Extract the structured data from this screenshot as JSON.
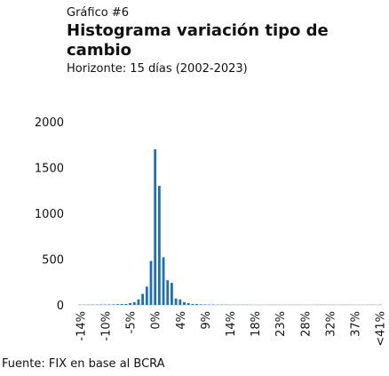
{
  "chart_data": {
    "type": "bar",
    "kicker": "Gráfico #6",
    "title": "Histograma variación tipo de cambio",
    "subtitle": "Horizonte: 15 días (2002-2023)",
    "source": "Fuente: FIX en base al BCRA",
    "color": "#1f6fb5",
    "categories": [
      "-14%",
      null,
      null,
      null,
      null,
      null,
      "-10%",
      null,
      null,
      null,
      null,
      null,
      "-5%",
      null,
      null,
      null,
      null,
      null,
      "0%",
      null,
      null,
      null,
      null,
      null,
      "4%",
      null,
      null,
      null,
      null,
      null,
      "9%",
      null,
      null,
      null,
      null,
      null,
      "14%",
      null,
      null,
      null,
      null,
      null,
      "18%",
      null,
      null,
      null,
      null,
      null,
      "23%",
      null,
      null,
      null,
      null,
      null,
      "28%",
      null,
      null,
      null,
      null,
      null,
      "32%",
      null,
      null,
      null,
      null,
      null,
      "37%",
      null,
      null,
      null,
      null,
      null,
      "<41%"
    ],
    "values": [
      2,
      2,
      3,
      3,
      3,
      4,
      4,
      5,
      6,
      8,
      10,
      10,
      20,
      30,
      60,
      120,
      200,
      480,
      1700,
      1300,
      520,
      270,
      240,
      70,
      60,
      30,
      20,
      10,
      10,
      6,
      5,
      4,
      4,
      3,
      3,
      3,
      2,
      2,
      2,
      2,
      2,
      1,
      1,
      1,
      1,
      1,
      1,
      1,
      1,
      1,
      1,
      1,
      1,
      1,
      1,
      1,
      1,
      1,
      1,
      1,
      1,
      1,
      1,
      1,
      1,
      1,
      1,
      1,
      1,
      1,
      1,
      1,
      2
    ],
    "ylim": [
      0,
      2000
    ],
    "yticks": [
      0,
      500,
      1000,
      1500,
      2000
    ],
    "grid": false
  }
}
